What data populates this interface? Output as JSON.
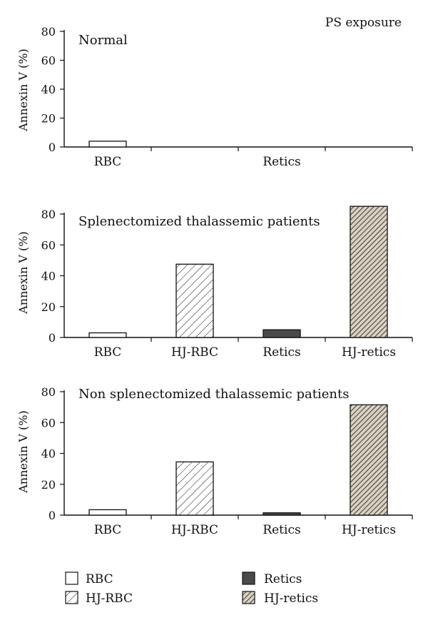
{
  "figure": {
    "corner_label": "PS exposure"
  },
  "legend": [
    {
      "label": "RBC",
      "fill": "white"
    },
    {
      "label": "HJ-RBC",
      "fill": "hatch-light"
    },
    {
      "label": "Retics",
      "fill": "dark"
    },
    {
      "label": "HJ-retics",
      "fill": "hatch-dense"
    }
  ],
  "colors": {
    "axis": "#111111",
    "dark_fill": "#4a4a4a",
    "hatch_dense_bg": "#d9d2c2",
    "white_fill": "#ffffff"
  },
  "chart_data": [
    {
      "type": "bar",
      "title": "Normal",
      "ylabel": "Annexin V (%)",
      "ylim": [
        0,
        80
      ],
      "yticks": [
        0,
        20,
        40,
        60,
        80
      ],
      "grid": false,
      "categories": [
        "RBC",
        "",
        "Retics",
        ""
      ],
      "values": [
        4,
        null,
        0,
        null
      ],
      "fills": [
        "white",
        "none",
        "dark",
        "none"
      ]
    },
    {
      "type": "bar",
      "title": "Splenectomized thalassemic patients",
      "ylabel": "Annexin V (%)",
      "ylim": [
        0,
        80
      ],
      "yticks": [
        0,
        20,
        40,
        60,
        80
      ],
      "grid": false,
      "categories": [
        "RBC",
        "HJ-RBC",
        "Retics",
        "HJ-retics"
      ],
      "values": [
        3,
        47.5,
        5,
        85
      ],
      "fills": [
        "white",
        "hatch-light",
        "dark",
        "hatch-dense"
      ]
    },
    {
      "type": "bar",
      "title": "Non splenectomized thalassemic patients",
      "ylabel": "Annexin V (%)",
      "ylim": [
        0,
        80
      ],
      "yticks": [
        0,
        20,
        40,
        60,
        80
      ],
      "grid": false,
      "categories": [
        "RBC",
        "HJ-RBC",
        "Retics",
        "HJ-retics"
      ],
      "values": [
        3.5,
        34.5,
        1.5,
        71.5
      ],
      "fills": [
        "white",
        "hatch-light",
        "dark",
        "hatch-dense"
      ]
    }
  ]
}
